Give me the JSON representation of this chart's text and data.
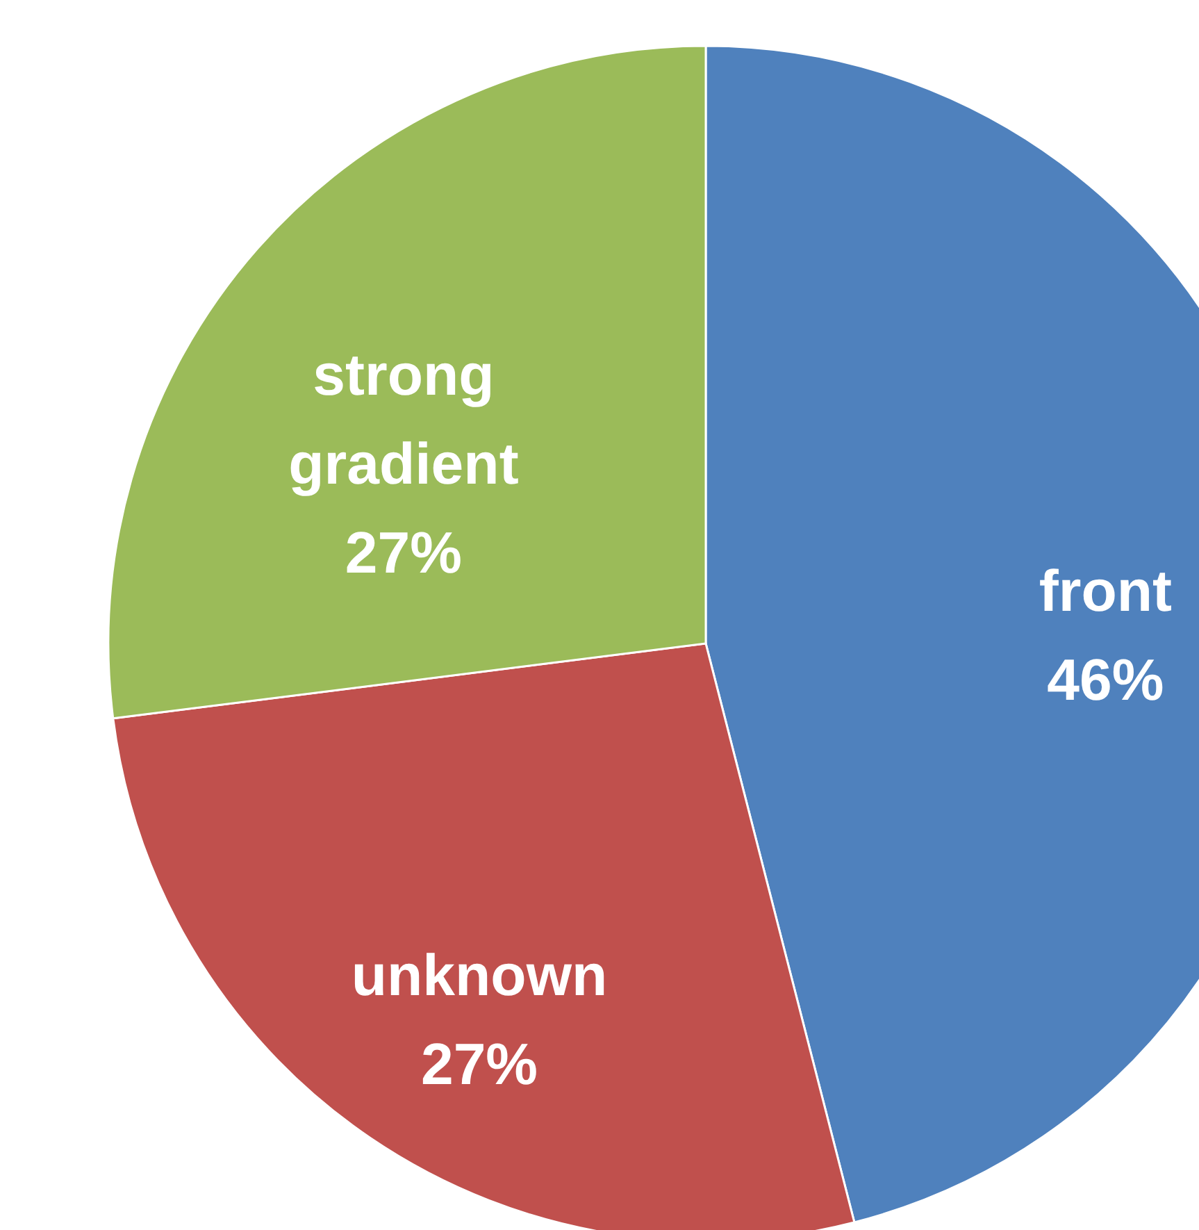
{
  "chart_data": {
    "type": "pie",
    "categories": [
      "front",
      "unknown",
      "strong gradient"
    ],
    "values": [
      46,
      27,
      27
    ],
    "value_labels": [
      "46%",
      "27%",
      "27%"
    ],
    "colors": [
      "#4f81bd",
      "#c0504d",
      "#9bbb59"
    ]
  }
}
